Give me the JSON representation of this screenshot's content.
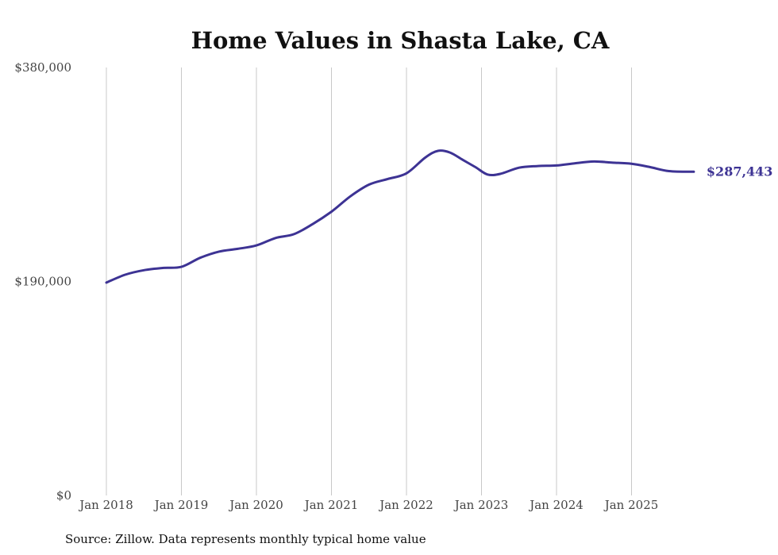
{
  "chart_data": {
    "type": "line",
    "title": "Home Values in Shasta Lake, CA",
    "xlabel": "",
    "ylabel": "",
    "ylim": [
      0,
      380000
    ],
    "y_ticks": [
      {
        "value": 0,
        "label": "$0"
      },
      {
        "value": 190000,
        "label": "$190,000"
      },
      {
        "value": 380000,
        "label": "$380,000"
      }
    ],
    "x_ticks": [
      {
        "value": 2018,
        "label": "Jan 2018"
      },
      {
        "value": 2019,
        "label": "Jan 2019"
      },
      {
        "value": 2020,
        "label": "Jan 2020"
      },
      {
        "value": 2021,
        "label": "Jan 2021"
      },
      {
        "value": 2022,
        "label": "Jan 2022"
      },
      {
        "value": 2023,
        "label": "Jan 2023"
      },
      {
        "value": 2024,
        "label": "Jan 2024"
      },
      {
        "value": 2025,
        "label": "Jan 2025"
      }
    ],
    "xlim": [
      2018,
      2026
    ],
    "grid": "vertical",
    "series": [
      {
        "name": "Typical home value",
        "color": "#3d3394",
        "points": [
          [
            2018.0,
            189000
          ],
          [
            2018.25,
            196000
          ],
          [
            2018.5,
            200000
          ],
          [
            2018.75,
            202000
          ],
          [
            2019.0,
            203000
          ],
          [
            2019.25,
            211000
          ],
          [
            2019.5,
            216500
          ],
          [
            2019.75,
            219000
          ],
          [
            2020.0,
            222000
          ],
          [
            2020.25,
            228500
          ],
          [
            2020.5,
            232000
          ],
          [
            2020.75,
            241000
          ],
          [
            2021.0,
            252000
          ],
          [
            2021.25,
            265500
          ],
          [
            2021.5,
            276000
          ],
          [
            2021.75,
            281000
          ],
          [
            2022.0,
            286000
          ],
          [
            2022.25,
            300000
          ],
          [
            2022.42,
            306000
          ],
          [
            2022.58,
            304500
          ],
          [
            2022.75,
            298000
          ],
          [
            2022.92,
            291500
          ],
          [
            2023.08,
            285000
          ],
          [
            2023.25,
            285500
          ],
          [
            2023.5,
            291000
          ],
          [
            2023.75,
            292500
          ],
          [
            2024.0,
            293000
          ],
          [
            2024.25,
            295000
          ],
          [
            2024.5,
            296500
          ],
          [
            2024.75,
            295500
          ],
          [
            2025.0,
            294500
          ],
          [
            2025.25,
            291500
          ],
          [
            2025.5,
            288000
          ],
          [
            2025.83,
            287443
          ]
        ]
      }
    ],
    "end_label": "$287,443"
  },
  "source": "Source: Zillow. Data represents monthly typical home value"
}
